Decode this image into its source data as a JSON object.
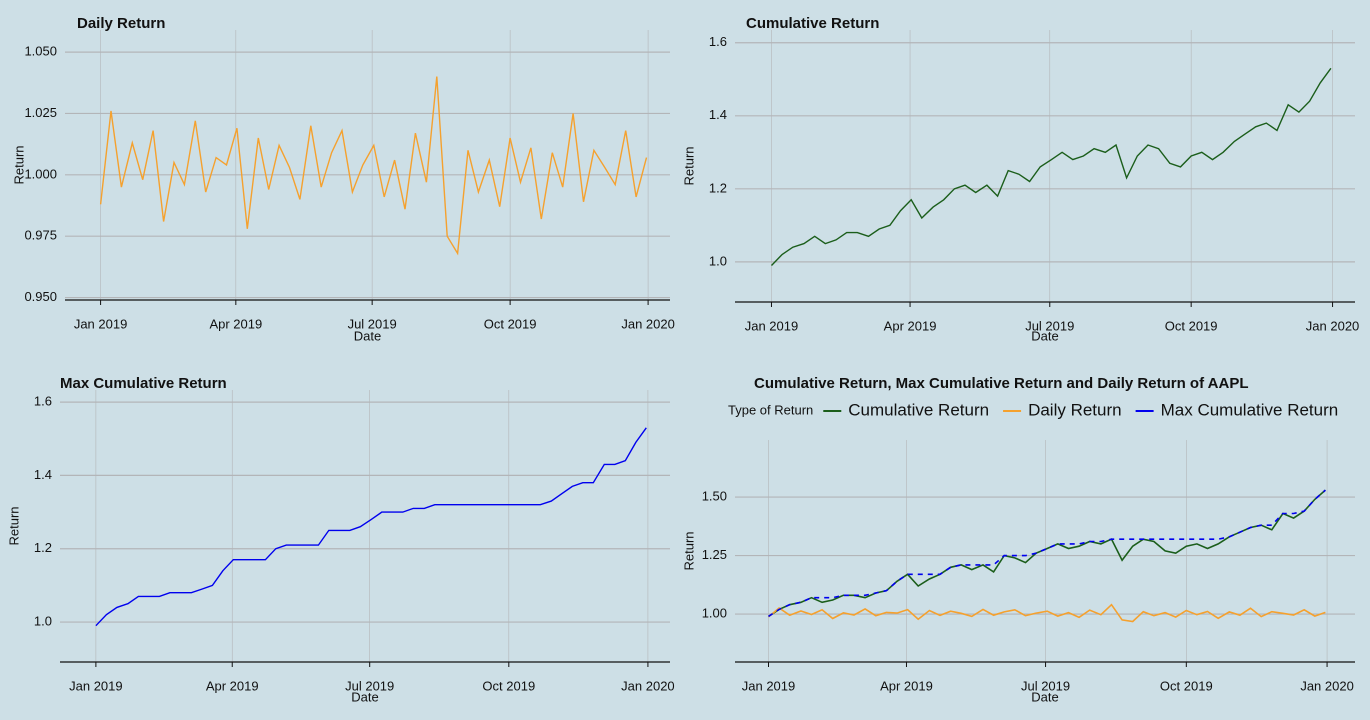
{
  "chart_data": [
    {
      "type": "line",
      "title": "Daily Return",
      "x_label": "Date",
      "y_label": "Return",
      "color": "#f5a12e",
      "x": [
        2019.0,
        2019.019,
        2019.038,
        2019.058,
        2019.077,
        2019.096,
        2019.115,
        2019.134,
        2019.153,
        2019.173,
        2019.192,
        2019.211,
        2019.23,
        2019.249,
        2019.268,
        2019.288,
        2019.307,
        2019.326,
        2019.345,
        2019.364,
        2019.384,
        2019.403,
        2019.422,
        2019.441,
        2019.46,
        2019.479,
        2019.499,
        2019.518,
        2019.537,
        2019.556,
        2019.575,
        2019.595,
        2019.614,
        2019.633,
        2019.652,
        2019.671,
        2019.69,
        2019.71,
        2019.729,
        2019.748,
        2019.767,
        2019.786,
        2019.805,
        2019.825,
        2019.844,
        2019.863,
        2019.882,
        2019.901,
        2019.921,
        2019.94,
        2019.959,
        2019.978,
        2019.997
      ],
      "values": [
        0.988,
        1.026,
        0.995,
        1.013,
        0.998,
        1.018,
        0.981,
        1.005,
        0.996,
        1.022,
        0.993,
        1.007,
        1.004,
        1.019,
        0.978,
        1.015,
        0.994,
        1.012,
        1.003,
        0.99,
        1.02,
        0.995,
        1.009,
        1.018,
        0.993,
        1.004,
        1.012,
        0.991,
        1.006,
        0.986,
        1.017,
        0.997,
        1.04,
        0.975,
        0.968,
        1.01,
        0.993,
        1.006,
        0.987,
        1.015,
        0.997,
        1.011,
        0.982,
        1.009,
        0.995,
        1.025,
        0.989,
        1.01,
        1.003,
        0.996,
        1.018,
        0.991,
        1.007
      ],
      "xlim": [
        2018.935,
        2020.04
      ],
      "ylim": [
        0.949,
        1.059
      ],
      "xticks": [
        {
          "value": 2019.0,
          "label": "Jan 2019"
        },
        {
          "value": 2019.247,
          "label": "Apr 2019"
        },
        {
          "value": 2019.496,
          "label": "Jul 2019"
        },
        {
          "value": 2019.748,
          "label": "Oct 2019"
        },
        {
          "value": 2020.0,
          "label": "Jan 2020"
        }
      ],
      "yticks": [
        {
          "value": 0.95,
          "label": "0.950"
        },
        {
          "value": 0.975,
          "label": "0.975"
        },
        {
          "value": 1.0,
          "label": "1.000"
        },
        {
          "value": 1.025,
          "label": "1.025"
        },
        {
          "value": 1.05,
          "label": "1.050"
        }
      ],
      "grid": true
    },
    {
      "type": "line",
      "title": "Cumulative Return",
      "x_label": "Date",
      "y_label": "Return",
      "color": "#1b5e1b",
      "x": [
        2019.0,
        2019.019,
        2019.038,
        2019.058,
        2019.077,
        2019.096,
        2019.115,
        2019.134,
        2019.153,
        2019.173,
        2019.192,
        2019.211,
        2019.23,
        2019.249,
        2019.268,
        2019.288,
        2019.307,
        2019.326,
        2019.345,
        2019.364,
        2019.384,
        2019.403,
        2019.422,
        2019.441,
        2019.46,
        2019.479,
        2019.499,
        2019.518,
        2019.537,
        2019.556,
        2019.575,
        2019.595,
        2019.614,
        2019.633,
        2019.652,
        2019.671,
        2019.69,
        2019.71,
        2019.729,
        2019.748,
        2019.767,
        2019.786,
        2019.805,
        2019.825,
        2019.844,
        2019.863,
        2019.882,
        2019.901,
        2019.921,
        2019.94,
        2019.959,
        2019.978,
        2019.997
      ],
      "values": [
        0.99,
        1.02,
        1.04,
        1.05,
        1.07,
        1.05,
        1.06,
        1.08,
        1.08,
        1.07,
        1.09,
        1.1,
        1.14,
        1.17,
        1.12,
        1.15,
        1.17,
        1.2,
        1.21,
        1.19,
        1.21,
        1.18,
        1.25,
        1.24,
        1.22,
        1.26,
        1.28,
        1.3,
        1.28,
        1.29,
        1.31,
        1.3,
        1.32,
        1.23,
        1.29,
        1.32,
        1.31,
        1.27,
        1.26,
        1.29,
        1.3,
        1.28,
        1.3,
        1.33,
        1.35,
        1.37,
        1.38,
        1.36,
        1.43,
        1.41,
        1.44,
        1.49,
        1.53
      ],
      "xlim": [
        2018.935,
        2020.04
      ],
      "ylim": [
        0.89,
        1.635
      ],
      "xticks": [
        {
          "value": 2019.0,
          "label": "Jan 2019"
        },
        {
          "value": 2019.247,
          "label": "Apr 2019"
        },
        {
          "value": 2019.496,
          "label": "Jul 2019"
        },
        {
          "value": 2019.748,
          "label": "Oct 2019"
        },
        {
          "value": 2020.0,
          "label": "Jan 2020"
        }
      ],
      "yticks": [
        {
          "value": 1.0,
          "label": "1.0"
        },
        {
          "value": 1.2,
          "label": "1.2"
        },
        {
          "value": 1.4,
          "label": "1.4"
        },
        {
          "value": 1.6,
          "label": "1.6"
        }
      ],
      "grid": true
    },
    {
      "type": "line",
      "title": "Max Cumulative Return",
      "x_label": "Date",
      "y_label": "Return",
      "color": "#0000ee",
      "x": [
        2019.0,
        2019.019,
        2019.038,
        2019.058,
        2019.077,
        2019.096,
        2019.115,
        2019.134,
        2019.153,
        2019.173,
        2019.192,
        2019.211,
        2019.23,
        2019.249,
        2019.268,
        2019.288,
        2019.307,
        2019.326,
        2019.345,
        2019.364,
        2019.384,
        2019.403,
        2019.422,
        2019.441,
        2019.46,
        2019.479,
        2019.499,
        2019.518,
        2019.537,
        2019.556,
        2019.575,
        2019.595,
        2019.614,
        2019.633,
        2019.652,
        2019.671,
        2019.69,
        2019.71,
        2019.729,
        2019.748,
        2019.767,
        2019.786,
        2019.805,
        2019.825,
        2019.844,
        2019.863,
        2019.882,
        2019.901,
        2019.921,
        2019.94,
        2019.959,
        2019.978,
        2019.997
      ],
      "values": [
        0.99,
        1.02,
        1.04,
        1.05,
        1.07,
        1.07,
        1.07,
        1.08,
        1.08,
        1.08,
        1.09,
        1.1,
        1.14,
        1.17,
        1.17,
        1.17,
        1.17,
        1.2,
        1.21,
        1.21,
        1.21,
        1.21,
        1.25,
        1.25,
        1.25,
        1.26,
        1.28,
        1.3,
        1.3,
        1.3,
        1.31,
        1.31,
        1.32,
        1.32,
        1.32,
        1.32,
        1.32,
        1.32,
        1.32,
        1.32,
        1.32,
        1.32,
        1.32,
        1.33,
        1.35,
        1.37,
        1.38,
        1.38,
        1.43,
        1.43,
        1.44,
        1.49,
        1.53
      ],
      "xlim": [
        2018.935,
        2020.04
      ],
      "ylim": [
        0.891,
        1.633
      ],
      "xticks": [
        {
          "value": 2019.0,
          "label": "Jan 2019"
        },
        {
          "value": 2019.247,
          "label": "Apr 2019"
        },
        {
          "value": 2019.496,
          "label": "Jul 2019"
        },
        {
          "value": 2019.748,
          "label": "Oct 2019"
        },
        {
          "value": 2020.0,
          "label": "Jan 2020"
        }
      ],
      "yticks": [
        {
          "value": 1.0,
          "label": "1.0"
        },
        {
          "value": 1.2,
          "label": "1.2"
        },
        {
          "value": 1.4,
          "label": "1.4"
        },
        {
          "value": 1.6,
          "label": "1.6"
        }
      ],
      "grid": true
    },
    {
      "type": "line",
      "title": "Cumulative Return, Max Cumulative Return and Daily Return of AAPL",
      "x_label": "Date",
      "y_label": "Return",
      "legend": "top",
      "legend_title": "Type of Return",
      "x": [
        2019.0,
        2019.019,
        2019.038,
        2019.058,
        2019.077,
        2019.096,
        2019.115,
        2019.134,
        2019.153,
        2019.173,
        2019.192,
        2019.211,
        2019.23,
        2019.249,
        2019.268,
        2019.288,
        2019.307,
        2019.326,
        2019.345,
        2019.364,
        2019.384,
        2019.403,
        2019.422,
        2019.441,
        2019.46,
        2019.479,
        2019.499,
        2019.518,
        2019.537,
        2019.556,
        2019.575,
        2019.595,
        2019.614,
        2019.633,
        2019.652,
        2019.671,
        2019.69,
        2019.71,
        2019.729,
        2019.748,
        2019.767,
        2019.786,
        2019.805,
        2019.825,
        2019.844,
        2019.863,
        2019.882,
        2019.901,
        2019.921,
        2019.94,
        2019.959,
        2019.978,
        2019.997
      ],
      "series": [
        {
          "name": "Cumulative Return",
          "color": "#1b5e1b",
          "dash": false,
          "values": [
            0.99,
            1.02,
            1.04,
            1.05,
            1.07,
            1.05,
            1.06,
            1.08,
            1.08,
            1.07,
            1.09,
            1.1,
            1.14,
            1.17,
            1.12,
            1.15,
            1.17,
            1.2,
            1.21,
            1.19,
            1.21,
            1.18,
            1.25,
            1.24,
            1.22,
            1.26,
            1.28,
            1.3,
            1.28,
            1.29,
            1.31,
            1.3,
            1.32,
            1.23,
            1.29,
            1.32,
            1.31,
            1.27,
            1.26,
            1.29,
            1.3,
            1.28,
            1.3,
            1.33,
            1.35,
            1.37,
            1.38,
            1.36,
            1.43,
            1.41,
            1.44,
            1.49,
            1.53
          ]
        },
        {
          "name": "Daily Return",
          "color": "#f5a12e",
          "dash": false,
          "values": [
            0.988,
            1.026,
            0.995,
            1.013,
            0.998,
            1.018,
            0.981,
            1.005,
            0.996,
            1.022,
            0.993,
            1.007,
            1.004,
            1.019,
            0.978,
            1.015,
            0.994,
            1.012,
            1.003,
            0.99,
            1.02,
            0.995,
            1.009,
            1.018,
            0.993,
            1.004,
            1.012,
            0.991,
            1.006,
            0.986,
            1.017,
            0.997,
            1.04,
            0.975,
            0.968,
            1.01,
            0.993,
            1.006,
            0.987,
            1.015,
            0.997,
            1.011,
            0.982,
            1.009,
            0.995,
            1.025,
            0.989,
            1.01,
            1.003,
            0.996,
            1.018,
            0.991,
            1.007
          ]
        },
        {
          "name": "Max Cumulative Return",
          "color": "#0000ee",
          "dash": true,
          "values": [
            0.99,
            1.02,
            1.04,
            1.05,
            1.07,
            1.07,
            1.07,
            1.08,
            1.08,
            1.08,
            1.09,
            1.1,
            1.14,
            1.17,
            1.17,
            1.17,
            1.17,
            1.2,
            1.21,
            1.21,
            1.21,
            1.21,
            1.25,
            1.25,
            1.25,
            1.26,
            1.28,
            1.3,
            1.3,
            1.3,
            1.31,
            1.31,
            1.32,
            1.32,
            1.32,
            1.32,
            1.32,
            1.32,
            1.32,
            1.32,
            1.32,
            1.32,
            1.32,
            1.33,
            1.35,
            1.37,
            1.38,
            1.38,
            1.43,
            1.43,
            1.44,
            1.49,
            1.53
          ]
        }
      ],
      "xlim": [
        2018.94,
        2020.05
      ],
      "ylim": [
        0.795,
        1.744
      ],
      "xticks": [
        {
          "value": 2019.0,
          "label": "Jan 2019"
        },
        {
          "value": 2019.247,
          "label": "Apr 2019"
        },
        {
          "value": 2019.496,
          "label": "Jul 2019"
        },
        {
          "value": 2019.748,
          "label": "Oct 2019"
        },
        {
          "value": 2020.0,
          "label": "Jan 2020"
        }
      ],
      "yticks": [
        {
          "value": 1.0,
          "label": "1.00"
        },
        {
          "value": 1.25,
          "label": "1.25"
        },
        {
          "value": 1.5,
          "label": "1.50"
        }
      ],
      "grid": true
    }
  ]
}
